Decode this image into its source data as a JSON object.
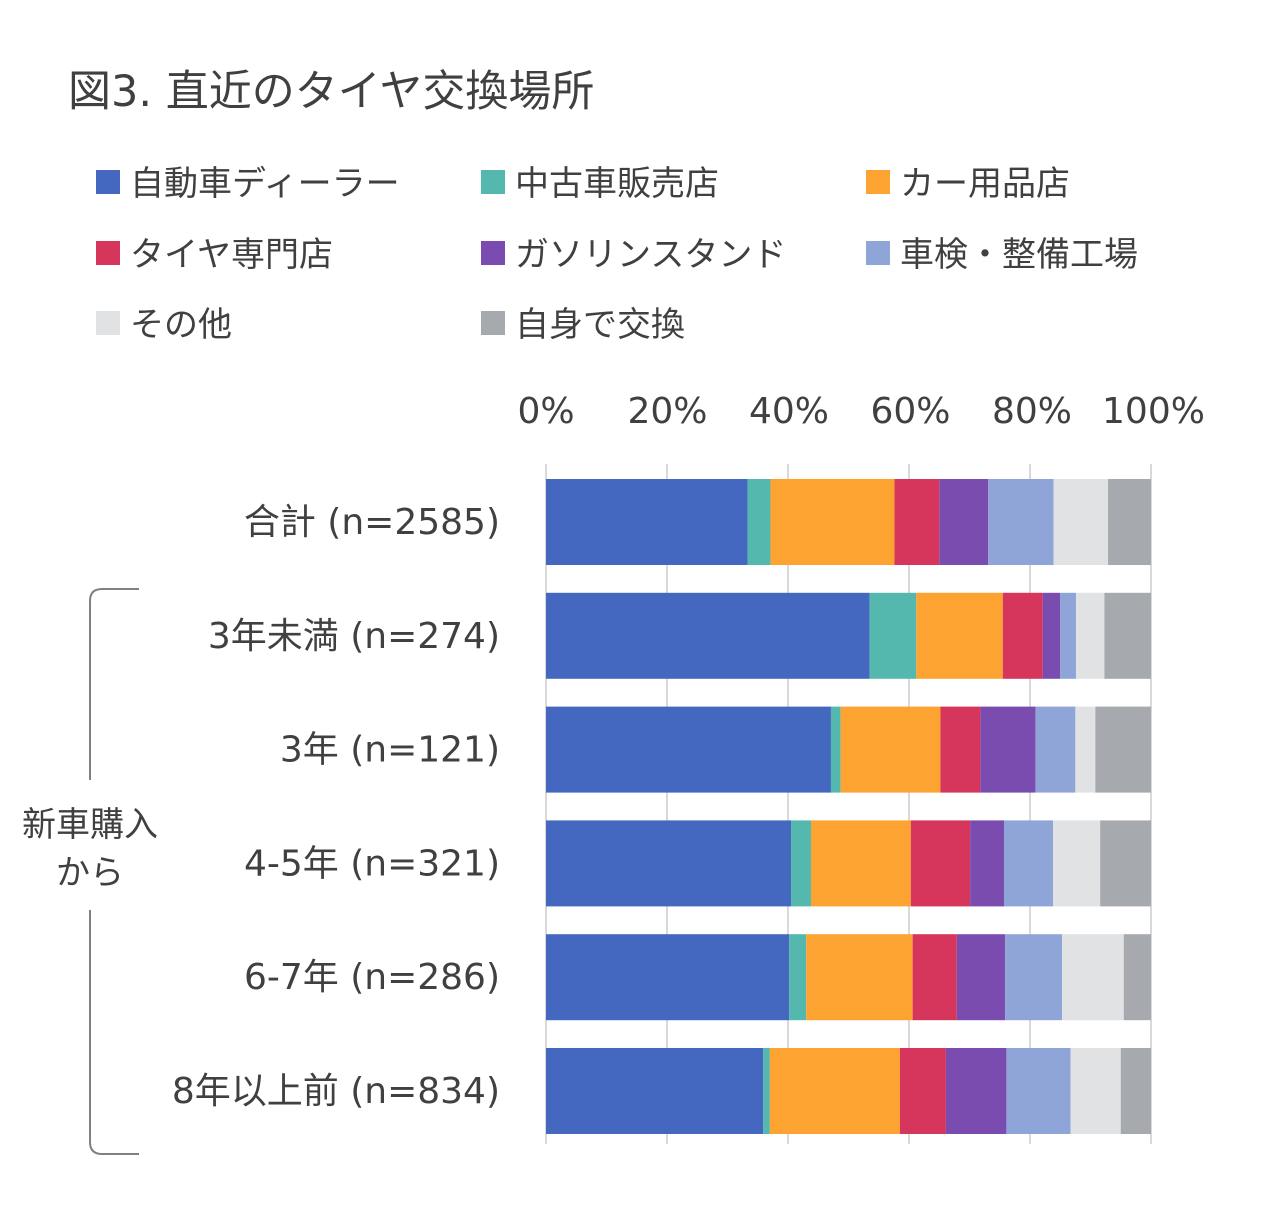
{
  "chart_data": {
    "type": "bar",
    "orientation": "horizontal",
    "stacked": "percent",
    "title": "図3. 直近のタイヤ交換場所",
    "legend_placement": "top",
    "grid": true,
    "xlim": [
      0,
      100
    ],
    "x_ticks": [
      "0%",
      "20%",
      "40%",
      "60%",
      "80%",
      "100%"
    ],
    "categories": [
      "合計 (n=2585)",
      "3年未満 (n=274)",
      "3年 (n=121)",
      "4-5年 (n=321)",
      "6-7年 (n=286)",
      "8年以上前 (n=834)"
    ],
    "group_bracket": {
      "label_lines": [
        "新車購入",
        "から"
      ],
      "applies_to": [
        1,
        2,
        3,
        4,
        5
      ]
    },
    "series": [
      {
        "name": "自動車ディーラー",
        "color": "#4468C0",
        "values": [
          33.3,
          53.5,
          47.1,
          40.5,
          40.2,
          35.9
        ]
      },
      {
        "name": "中古車販売店",
        "color": "#55B8AE",
        "values": [
          3.8,
          7.7,
          1.6,
          3.3,
          2.8,
          1.1
        ]
      },
      {
        "name": "カー用品店",
        "color": "#FCA331",
        "values": [
          20.5,
          14.3,
          16.5,
          16.5,
          17.6,
          21.5
        ]
      },
      {
        "name": "タイヤ専門店",
        "color": "#D6355C",
        "values": [
          7.4,
          6.6,
          6.6,
          9.8,
          7.3,
          7.6
        ]
      },
      {
        "name": "ガソリンスタンド",
        "color": "#7B4CB0",
        "values": [
          8.1,
          2.9,
          9.1,
          5.6,
          8.0,
          10.0
        ]
      },
      {
        "name": "車検・整備工場",
        "color": "#8FA5D7",
        "values": [
          10.8,
          2.6,
          6.6,
          8.1,
          9.4,
          10.6
        ]
      },
      {
        "name": "その他",
        "color": "#E1E2E4",
        "values": [
          9.0,
          4.7,
          3.3,
          7.8,
          10.2,
          8.3
        ]
      },
      {
        "name": "自身で交換",
        "color": "#A6A9AE",
        "values": [
          7.1,
          7.7,
          9.2,
          8.4,
          4.5,
          5.0
        ]
      }
    ]
  }
}
